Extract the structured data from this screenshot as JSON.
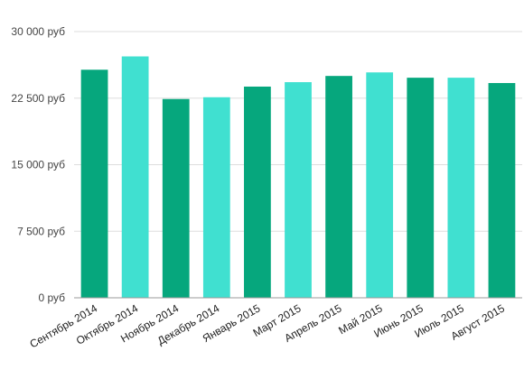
{
  "chart_data": {
    "type": "bar",
    "categories": [
      "Сентябрь 2014",
      "Октябрь 2014",
      "Ноябрь 2014",
      "Декабрь 2014",
      "Январь 2015",
      "Март 2015",
      "Апрель 2015",
      "Май 2015",
      "Июнь 2015",
      "Июль 2015",
      "Август 2015"
    ],
    "values": [
      25700,
      27200,
      22400,
      22600,
      23800,
      24300,
      25000,
      25400,
      24800,
      24800,
      24200
    ],
    "title": "",
    "xlabel": "",
    "ylabel": "",
    "ylim": [
      0,
      30000
    ],
    "yticks": [
      0,
      7500,
      15000,
      22500,
      30000
    ],
    "ytick_labels": [
      "0 руб",
      "7 500 руб",
      "15 000 руб",
      "22 500 руб",
      "30 000 руб"
    ],
    "grid": true,
    "legend": "none",
    "colors": [
      "#06A77D",
      "#40E0D0"
    ]
  }
}
